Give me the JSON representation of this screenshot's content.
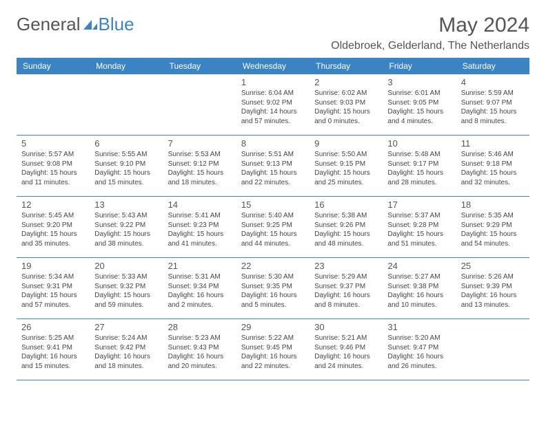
{
  "logo": {
    "general": "General",
    "blue": "Blue"
  },
  "title": "May 2024",
  "location": "Oldebroek, Gelderland, The Netherlands",
  "colors": {
    "header_bg": "#3b84c4",
    "header_text": "#ffffff",
    "text_gray": "#555555",
    "border": "#3b84c4",
    "body_text": "#444444"
  },
  "dayNames": [
    "Sunday",
    "Monday",
    "Tuesday",
    "Wednesday",
    "Thursday",
    "Friday",
    "Saturday"
  ],
  "weeks": [
    [
      {
        "num": "",
        "sunrise": "",
        "sunset": "",
        "daylight": ""
      },
      {
        "num": "",
        "sunrise": "",
        "sunset": "",
        "daylight": ""
      },
      {
        "num": "",
        "sunrise": "",
        "sunset": "",
        "daylight": ""
      },
      {
        "num": "1",
        "sunrise": "Sunrise: 6:04 AM",
        "sunset": "Sunset: 9:02 PM",
        "daylight": "Daylight: 14 hours and 57 minutes."
      },
      {
        "num": "2",
        "sunrise": "Sunrise: 6:02 AM",
        "sunset": "Sunset: 9:03 PM",
        "daylight": "Daylight: 15 hours and 0 minutes."
      },
      {
        "num": "3",
        "sunrise": "Sunrise: 6:01 AM",
        "sunset": "Sunset: 9:05 PM",
        "daylight": "Daylight: 15 hours and 4 minutes."
      },
      {
        "num": "4",
        "sunrise": "Sunrise: 5:59 AM",
        "sunset": "Sunset: 9:07 PM",
        "daylight": "Daylight: 15 hours and 8 minutes."
      }
    ],
    [
      {
        "num": "5",
        "sunrise": "Sunrise: 5:57 AM",
        "sunset": "Sunset: 9:08 PM",
        "daylight": "Daylight: 15 hours and 11 minutes."
      },
      {
        "num": "6",
        "sunrise": "Sunrise: 5:55 AM",
        "sunset": "Sunset: 9:10 PM",
        "daylight": "Daylight: 15 hours and 15 minutes."
      },
      {
        "num": "7",
        "sunrise": "Sunrise: 5:53 AM",
        "sunset": "Sunset: 9:12 PM",
        "daylight": "Daylight: 15 hours and 18 minutes."
      },
      {
        "num": "8",
        "sunrise": "Sunrise: 5:51 AM",
        "sunset": "Sunset: 9:13 PM",
        "daylight": "Daylight: 15 hours and 22 minutes."
      },
      {
        "num": "9",
        "sunrise": "Sunrise: 5:50 AM",
        "sunset": "Sunset: 9:15 PM",
        "daylight": "Daylight: 15 hours and 25 minutes."
      },
      {
        "num": "10",
        "sunrise": "Sunrise: 5:48 AM",
        "sunset": "Sunset: 9:17 PM",
        "daylight": "Daylight: 15 hours and 28 minutes."
      },
      {
        "num": "11",
        "sunrise": "Sunrise: 5:46 AM",
        "sunset": "Sunset: 9:18 PM",
        "daylight": "Daylight: 15 hours and 32 minutes."
      }
    ],
    [
      {
        "num": "12",
        "sunrise": "Sunrise: 5:45 AM",
        "sunset": "Sunset: 9:20 PM",
        "daylight": "Daylight: 15 hours and 35 minutes."
      },
      {
        "num": "13",
        "sunrise": "Sunrise: 5:43 AM",
        "sunset": "Sunset: 9:22 PM",
        "daylight": "Daylight: 15 hours and 38 minutes."
      },
      {
        "num": "14",
        "sunrise": "Sunrise: 5:41 AM",
        "sunset": "Sunset: 9:23 PM",
        "daylight": "Daylight: 15 hours and 41 minutes."
      },
      {
        "num": "15",
        "sunrise": "Sunrise: 5:40 AM",
        "sunset": "Sunset: 9:25 PM",
        "daylight": "Daylight: 15 hours and 44 minutes."
      },
      {
        "num": "16",
        "sunrise": "Sunrise: 5:38 AM",
        "sunset": "Sunset: 9:26 PM",
        "daylight": "Daylight: 15 hours and 48 minutes."
      },
      {
        "num": "17",
        "sunrise": "Sunrise: 5:37 AM",
        "sunset": "Sunset: 9:28 PM",
        "daylight": "Daylight: 15 hours and 51 minutes."
      },
      {
        "num": "18",
        "sunrise": "Sunrise: 5:35 AM",
        "sunset": "Sunset: 9:29 PM",
        "daylight": "Daylight: 15 hours and 54 minutes."
      }
    ],
    [
      {
        "num": "19",
        "sunrise": "Sunrise: 5:34 AM",
        "sunset": "Sunset: 9:31 PM",
        "daylight": "Daylight: 15 hours and 57 minutes."
      },
      {
        "num": "20",
        "sunrise": "Sunrise: 5:33 AM",
        "sunset": "Sunset: 9:32 PM",
        "daylight": "Daylight: 15 hours and 59 minutes."
      },
      {
        "num": "21",
        "sunrise": "Sunrise: 5:31 AM",
        "sunset": "Sunset: 9:34 PM",
        "daylight": "Daylight: 16 hours and 2 minutes."
      },
      {
        "num": "22",
        "sunrise": "Sunrise: 5:30 AM",
        "sunset": "Sunset: 9:35 PM",
        "daylight": "Daylight: 16 hours and 5 minutes."
      },
      {
        "num": "23",
        "sunrise": "Sunrise: 5:29 AM",
        "sunset": "Sunset: 9:37 PM",
        "daylight": "Daylight: 16 hours and 8 minutes."
      },
      {
        "num": "24",
        "sunrise": "Sunrise: 5:27 AM",
        "sunset": "Sunset: 9:38 PM",
        "daylight": "Daylight: 16 hours and 10 minutes."
      },
      {
        "num": "25",
        "sunrise": "Sunrise: 5:26 AM",
        "sunset": "Sunset: 9:39 PM",
        "daylight": "Daylight: 16 hours and 13 minutes."
      }
    ],
    [
      {
        "num": "26",
        "sunrise": "Sunrise: 5:25 AM",
        "sunset": "Sunset: 9:41 PM",
        "daylight": "Daylight: 16 hours and 15 minutes."
      },
      {
        "num": "27",
        "sunrise": "Sunrise: 5:24 AM",
        "sunset": "Sunset: 9:42 PM",
        "daylight": "Daylight: 16 hours and 18 minutes."
      },
      {
        "num": "28",
        "sunrise": "Sunrise: 5:23 AM",
        "sunset": "Sunset: 9:43 PM",
        "daylight": "Daylight: 16 hours and 20 minutes."
      },
      {
        "num": "29",
        "sunrise": "Sunrise: 5:22 AM",
        "sunset": "Sunset: 9:45 PM",
        "daylight": "Daylight: 16 hours and 22 minutes."
      },
      {
        "num": "30",
        "sunrise": "Sunrise: 5:21 AM",
        "sunset": "Sunset: 9:46 PM",
        "daylight": "Daylight: 16 hours and 24 minutes."
      },
      {
        "num": "31",
        "sunrise": "Sunrise: 5:20 AM",
        "sunset": "Sunset: 9:47 PM",
        "daylight": "Daylight: 16 hours and 26 minutes."
      },
      {
        "num": "",
        "sunrise": "",
        "sunset": "",
        "daylight": ""
      }
    ]
  ]
}
